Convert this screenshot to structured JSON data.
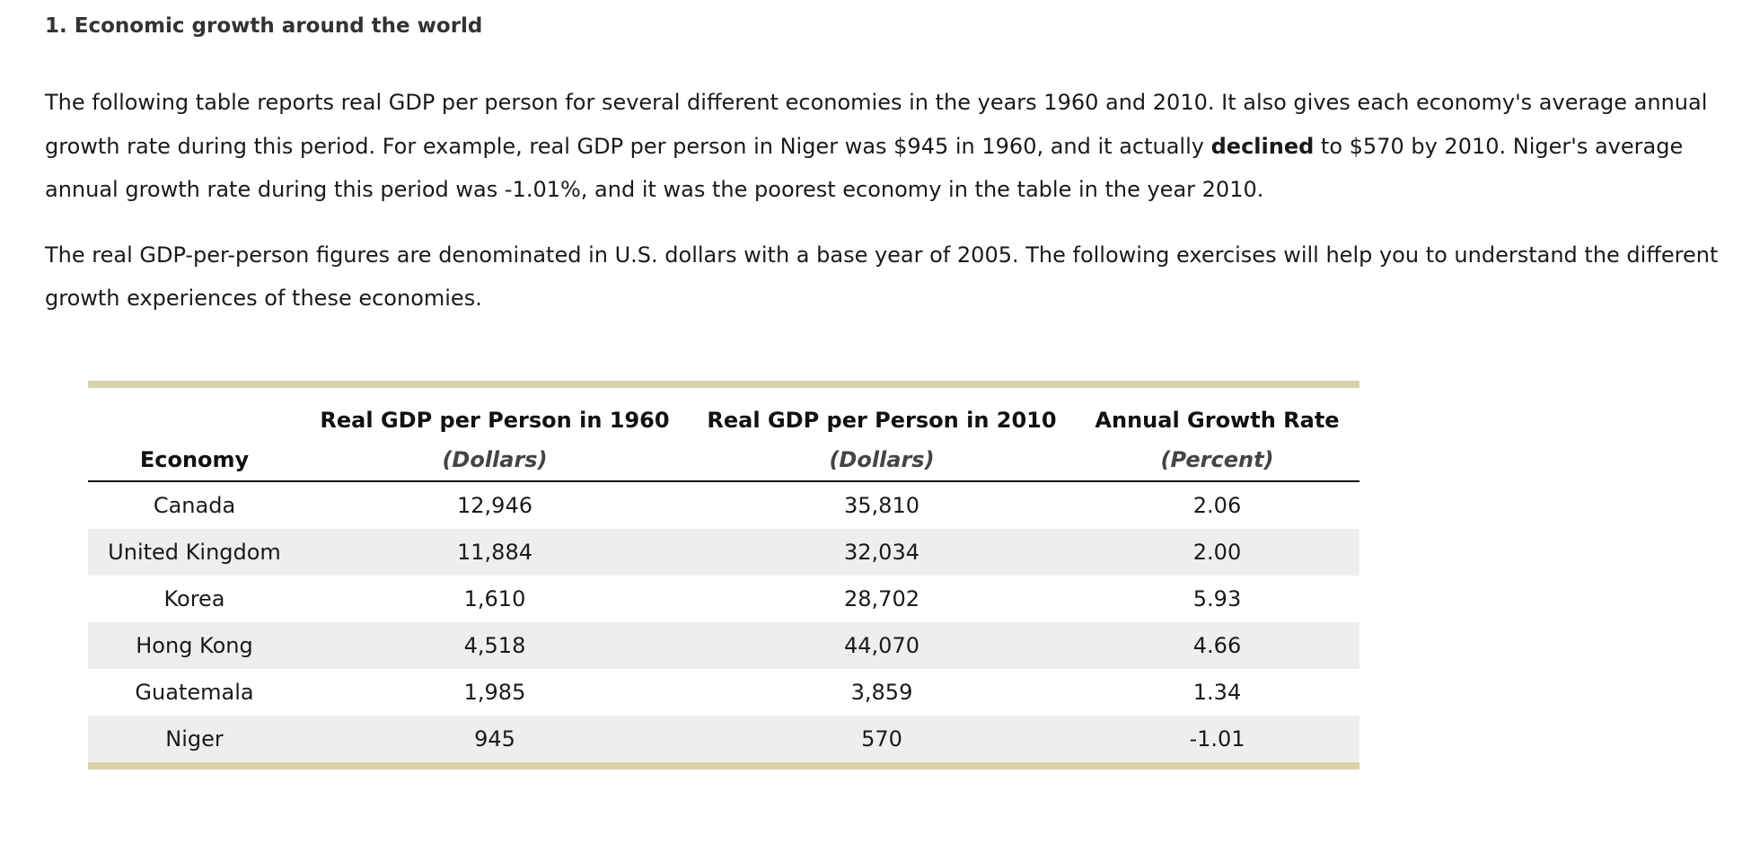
{
  "section": {
    "heading": "1. Economic growth around the world",
    "para1_a": "The following table reports real GDP per person for several different economies in the years 1960 and 2010. It also gives each economy's average annual growth rate during this period. For example, real GDP per person in Niger was $945 in 1960, and it actually ",
    "para1_bold": "declined",
    "para1_b": " to $570 by 2010. Niger's average annual growth rate during this period was -1.01%, and it was the poorest economy in the table in the year 2010.",
    "para2": "The real GDP-per-person figures are denominated in U.S. dollars with a base year of 2005. The following exercises will help you to understand the different growth experiences of these economies."
  },
  "table": {
    "headers": [
      {
        "title": "",
        "sub": "Economy"
      },
      {
        "title": "Real GDP per Person in 1960",
        "sub": "(Dollars)"
      },
      {
        "title": "Real GDP per Person in 2010",
        "sub": "(Dollars)"
      },
      {
        "title": "Annual Growth Rate",
        "sub": "(Percent)"
      }
    ],
    "rows": [
      [
        "Canada",
        "12,946",
        "35,810",
        "2.06"
      ],
      [
        "United Kingdom",
        "11,884",
        "32,034",
        "2.00"
      ],
      [
        "Korea",
        "1,610",
        "28,702",
        "5.93"
      ],
      [
        "Hong Kong",
        "4,518",
        "44,070",
        "4.66"
      ],
      [
        "Guatemala",
        "1,985",
        "3,859",
        "1.34"
      ],
      [
        "Niger",
        "945",
        "570",
        "-1.01"
      ]
    ]
  },
  "colors": {
    "rule": "#d9d1a8",
    "stripe": "#eeeef0",
    "heading": "#333333"
  }
}
